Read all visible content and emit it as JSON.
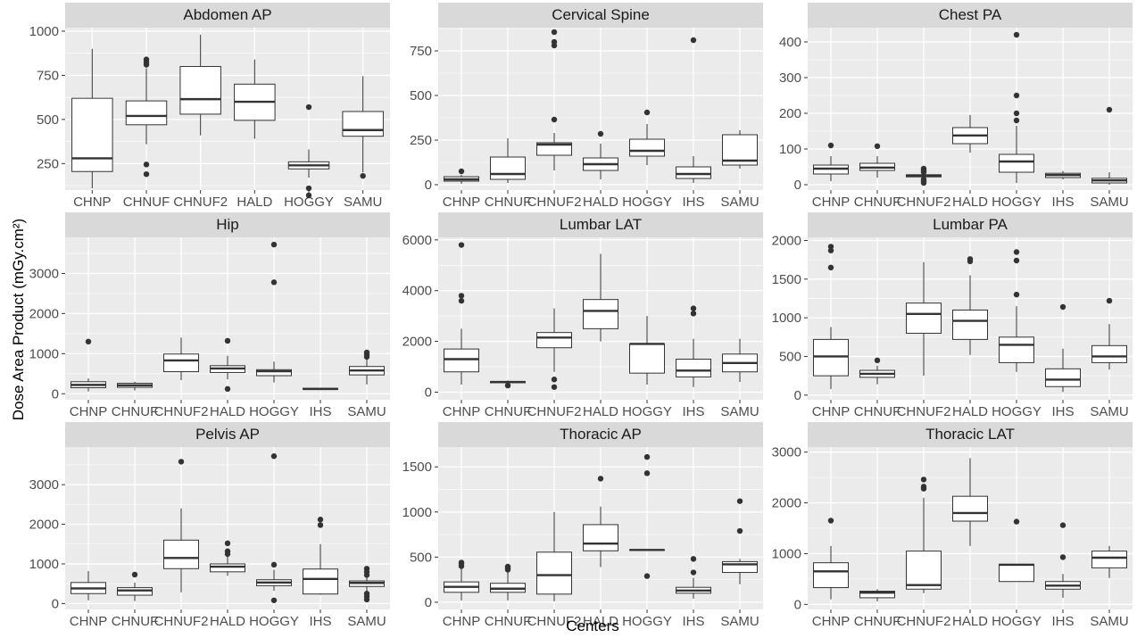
{
  "figure": {
    "xlabel": "Centers",
    "ylabel": "Dose Area Product (mGy.cm²)"
  },
  "colors": {
    "panel_bg": "#ebebeb",
    "strip_bg": "#d9d9d9",
    "grid_major": "#ffffff",
    "box_fill": "#ffffff",
    "box_line": "#333333",
    "outlier": "#333333"
  },
  "chart_data": [
    {
      "type": "box",
      "title": "Abdomen AP",
      "categories": [
        "CHNP",
        "CHNUF",
        "CHNUF2",
        "HALD",
        "HOGGY",
        "SAMU"
      ],
      "ylim": [
        100,
        1020
      ],
      "yticks": [
        250,
        500,
        750,
        1000
      ],
      "boxes": [
        {
          "min": 110,
          "q1": 205,
          "median": 280,
          "q3": 620,
          "max": 900,
          "outliers": []
        },
        {
          "min": 360,
          "q1": 470,
          "median": 520,
          "q3": 605,
          "max": 790,
          "outliers": [
            190,
            245,
            810,
            825,
            840
          ]
        },
        {
          "min": 410,
          "q1": 530,
          "median": 615,
          "q3": 800,
          "max": 980,
          "outliers": []
        },
        {
          "min": 390,
          "q1": 495,
          "median": 600,
          "q3": 700,
          "max": 840,
          "outliers": []
        },
        {
          "min": 170,
          "q1": 220,
          "median": 240,
          "q3": 260,
          "max": 330,
          "outliers": [
            70,
            110,
            570
          ]
        },
        {
          "min": 200,
          "q1": 405,
          "median": 440,
          "q3": 545,
          "max": 745,
          "outliers": [
            180
          ]
        }
      ]
    },
    {
      "type": "box",
      "title": "Cervical Spine",
      "categories": [
        "CHNP",
        "CHNUF",
        "CHNUF2",
        "HALD",
        "HOGGY",
        "IHS",
        "SAMU"
      ],
      "ylim": [
        -30,
        880
      ],
      "yticks": [
        0,
        250,
        500,
        750
      ],
      "boxes": [
        {
          "min": 5,
          "q1": 20,
          "median": 30,
          "q3": 45,
          "max": 55,
          "outliers": [
            75
          ]
        },
        {
          "min": 10,
          "q1": 30,
          "median": 60,
          "q3": 155,
          "max": 260,
          "outliers": []
        },
        {
          "min": 80,
          "q1": 165,
          "median": 225,
          "q3": 235,
          "max": 290,
          "outliers": [
            365,
            780,
            800,
            855
          ]
        },
        {
          "min": 30,
          "q1": 80,
          "median": 115,
          "q3": 150,
          "max": 230,
          "outliers": [
            285
          ]
        },
        {
          "min": 110,
          "q1": 160,
          "median": 190,
          "q3": 255,
          "max": 340,
          "outliers": [
            405
          ]
        },
        {
          "min": 10,
          "q1": 35,
          "median": 60,
          "q3": 100,
          "max": 160,
          "outliers": [
            810
          ]
        },
        {
          "min": 90,
          "q1": 110,
          "median": 135,
          "q3": 280,
          "max": 305,
          "outliers": []
        }
      ]
    },
    {
      "type": "box",
      "title": "Chest PA",
      "categories": [
        "CHNP",
        "CHNUF",
        "CHNUF2",
        "HALD",
        "HOGGY",
        "IHS",
        "SAMU"
      ],
      "ylim": [
        -15,
        440
      ],
      "yticks": [
        0,
        100,
        200,
        300,
        400
      ],
      "boxes": [
        {
          "min": 10,
          "q1": 30,
          "median": 45,
          "q3": 55,
          "max": 80,
          "outliers": [
            110
          ]
        },
        {
          "min": 20,
          "q1": 40,
          "median": 48,
          "q3": 60,
          "max": 80,
          "outliers": [
            108
          ]
        },
        {
          "min": 18,
          "q1": 22,
          "median": 25,
          "q3": 28,
          "max": 32,
          "outliers": [
            5,
            10,
            15,
            35,
            40,
            45
          ]
        },
        {
          "min": 90,
          "q1": 115,
          "median": 138,
          "q3": 160,
          "max": 195,
          "outliers": []
        },
        {
          "min": 5,
          "q1": 35,
          "median": 65,
          "q3": 85,
          "max": 165,
          "outliers": [
            180,
            200,
            250,
            420
          ]
        },
        {
          "min": 15,
          "q1": 20,
          "median": 27,
          "q3": 32,
          "max": 38,
          "outliers": []
        },
        {
          "min": 0,
          "q1": 5,
          "median": 12,
          "q3": 18,
          "max": 35,
          "outliers": [
            210
          ]
        }
      ]
    },
    {
      "type": "box",
      "title": "Hip",
      "categories": [
        "CHNP",
        "CHNUF",
        "CHNUF2",
        "HALD",
        "HOGGY",
        "IHS",
        "SAMU"
      ],
      "ylim": [
        -150,
        3900
      ],
      "yticks": [
        0,
        1000,
        2000,
        3000
      ],
      "boxes": [
        {
          "min": 60,
          "q1": 150,
          "median": 220,
          "q3": 300,
          "max": 380,
          "outliers": [
            1300
          ]
        },
        {
          "min": 80,
          "q1": 160,
          "median": 210,
          "q3": 260,
          "max": 300,
          "outliers": []
        },
        {
          "min": 340,
          "q1": 550,
          "median": 830,
          "q3": 990,
          "max": 1400,
          "outliers": []
        },
        {
          "min": 360,
          "q1": 530,
          "median": 630,
          "q3": 700,
          "max": 950,
          "outliers": [
            120,
            1320
          ]
        },
        {
          "min": 280,
          "q1": 450,
          "median": 560,
          "q3": 600,
          "max": 800,
          "outliers": [
            2780,
            3720
          ]
        },
        {
          "min": 90,
          "q1": 110,
          "median": 120,
          "q3": 135,
          "max": 150,
          "outliers": []
        },
        {
          "min": 230,
          "q1": 470,
          "median": 580,
          "q3": 680,
          "max": 880,
          "outliers": [
            920,
            980,
            1030
          ]
        }
      ]
    },
    {
      "type": "box",
      "title": "Lumbar LAT",
      "categories": [
        "CHNP",
        "CHNUF",
        "CHNUF2",
        "HALD",
        "HOGGY",
        "IHS",
        "SAMU"
      ],
      "ylim": [
        -300,
        6100
      ],
      "yticks": [
        0,
        2000,
        4000,
        6000
      ],
      "boxes": [
        {
          "min": 300,
          "q1": 800,
          "median": 1300,
          "q3": 1700,
          "max": 2500,
          "outliers": [
            3600,
            3800,
            5800
          ]
        },
        {
          "min": 320,
          "q1": 370,
          "median": 400,
          "q3": 420,
          "max": 460,
          "outliers": [
            260
          ]
        },
        {
          "min": 800,
          "q1": 1750,
          "median": 2150,
          "q3": 2350,
          "max": 3300,
          "outliers": [
            200,
            500
          ]
        },
        {
          "min": 2000,
          "q1": 2500,
          "median": 3200,
          "q3": 3650,
          "max": 5450,
          "outliers": []
        },
        {
          "min": 300,
          "q1": 750,
          "median": 1900,
          "q3": 1900,
          "max": 3000,
          "outliers": []
        },
        {
          "min": 200,
          "q1": 600,
          "median": 850,
          "q3": 1300,
          "max": 2100,
          "outliers": [
            3100,
            3300
          ]
        },
        {
          "min": 400,
          "q1": 800,
          "median": 1150,
          "q3": 1500,
          "max": 2100,
          "outliers": []
        }
      ]
    },
    {
      "type": "box",
      "title": "Lumbar PA",
      "categories": [
        "CHNP",
        "CHNUF",
        "CHNUF2",
        "HALD",
        "HOGGY",
        "IHS",
        "SAMU"
      ],
      "ylim": [
        -60,
        2040
      ],
      "yticks": [
        0,
        500,
        1000,
        1500,
        2000
      ],
      "boxes": [
        {
          "min": 80,
          "q1": 250,
          "median": 500,
          "q3": 720,
          "max": 880,
          "outliers": [
            1650,
            1870,
            1920
          ]
        },
        {
          "min": 140,
          "q1": 230,
          "median": 275,
          "q3": 320,
          "max": 380,
          "outliers": [
            450
          ]
        },
        {
          "min": 250,
          "q1": 800,
          "median": 1050,
          "q3": 1190,
          "max": 1720,
          "outliers": []
        },
        {
          "min": 520,
          "q1": 720,
          "median": 960,
          "q3": 1100,
          "max": 1550,
          "outliers": [
            1730,
            1760
          ]
        },
        {
          "min": 300,
          "q1": 420,
          "median": 650,
          "q3": 750,
          "max": 1150,
          "outliers": [
            1300,
            1740,
            1850
          ]
        },
        {
          "min": 40,
          "q1": 110,
          "median": 200,
          "q3": 340,
          "max": 600,
          "outliers": [
            1140
          ]
        },
        {
          "min": 330,
          "q1": 420,
          "median": 500,
          "q3": 640,
          "max": 920,
          "outliers": [
            1220
          ]
        }
      ]
    },
    {
      "type": "box",
      "title": "Pelvis AP",
      "categories": [
        "CHNP",
        "CHNUF",
        "CHNUF2",
        "HALD",
        "HOGGY",
        "IHS",
        "SAMU"
      ],
      "ylim": [
        -150,
        3950
      ],
      "yticks": [
        0,
        1000,
        2000,
        3000
      ],
      "boxes": [
        {
          "min": 80,
          "q1": 250,
          "median": 380,
          "q3": 530,
          "max": 820,
          "outliers": []
        },
        {
          "min": 60,
          "q1": 210,
          "median": 330,
          "q3": 400,
          "max": 530,
          "outliers": [
            730
          ]
        },
        {
          "min": 280,
          "q1": 880,
          "median": 1150,
          "q3": 1600,
          "max": 2400,
          "outliers": [
            3580
          ]
        },
        {
          "min": 700,
          "q1": 800,
          "median": 930,
          "q3": 1000,
          "max": 1180,
          "outliers": [
            1250,
            1320,
            1520
          ]
        },
        {
          "min": 320,
          "q1": 450,
          "median": 530,
          "q3": 600,
          "max": 850,
          "outliers": [
            80,
            980,
            3720
          ]
        },
        {
          "min": 220,
          "q1": 240,
          "median": 620,
          "q3": 870,
          "max": 1500,
          "outliers": [
            1980,
            2120
          ]
        },
        {
          "min": 280,
          "q1": 430,
          "median": 520,
          "q3": 570,
          "max": 680,
          "outliers": [
            100,
            180,
            250,
            720,
            800,
            880
          ]
        }
      ]
    },
    {
      "type": "box",
      "title": "Thoracic AP",
      "categories": [
        "CHNP",
        "CHNUF",
        "CHNUF2",
        "HALD",
        "HOGGY",
        "IHS",
        "SAMU"
      ],
      "ylim": [
        -80,
        1720
      ],
      "yticks": [
        0,
        500,
        1000,
        1500
      ],
      "boxes": [
        {
          "min": 20,
          "q1": 110,
          "median": 170,
          "q3": 225,
          "max": 370,
          "outliers": [
            400,
            430,
            440
          ]
        },
        {
          "min": 20,
          "q1": 110,
          "median": 150,
          "q3": 210,
          "max": 330,
          "outliers": [
            360,
            380,
            395
          ]
        },
        {
          "min": 10,
          "q1": 90,
          "median": 300,
          "q3": 555,
          "max": 1000,
          "outliers": []
        },
        {
          "min": 390,
          "q1": 570,
          "median": 650,
          "q3": 860,
          "max": 1060,
          "outliers": [
            1370
          ]
        },
        {
          "min": 580,
          "q1": 580,
          "median": 580,
          "q3": 580,
          "max": 580,
          "outliers": [
            290,
            1430,
            1610
          ]
        },
        {
          "min": 40,
          "q1": 100,
          "median": 130,
          "q3": 165,
          "max": 270,
          "outliers": [
            330,
            480
          ]
        },
        {
          "min": 200,
          "q1": 330,
          "median": 420,
          "q3": 450,
          "max": 480,
          "outliers": [
            790,
            1120
          ]
        }
      ]
    },
    {
      "type": "box",
      "title": "Thoracic LAT",
      "categories": [
        "CHNP",
        "CHNUF",
        "CHNUF2",
        "HALD",
        "HOGGY",
        "IHS",
        "SAMU"
      ],
      "ylim": [
        -100,
        3100
      ],
      "yticks": [
        0,
        1000,
        2000,
        3000
      ],
      "boxes": [
        {
          "min": 100,
          "q1": 330,
          "median": 650,
          "q3": 820,
          "max": 1150,
          "outliers": [
            1650
          ]
        },
        {
          "min": 60,
          "q1": 130,
          "median": 230,
          "q3": 260,
          "max": 300,
          "outliers": []
        },
        {
          "min": 220,
          "q1": 300,
          "median": 380,
          "q3": 1050,
          "max": 2100,
          "outliers": [
            2280,
            2320,
            2460
          ]
        },
        {
          "min": 1150,
          "q1": 1640,
          "median": 1800,
          "q3": 2130,
          "max": 2880,
          "outliers": []
        },
        {
          "min": 450,
          "q1": 450,
          "median": 780,
          "q3": 790,
          "max": 800,
          "outliers": [
            1630
          ]
        },
        {
          "min": 130,
          "q1": 300,
          "median": 370,
          "q3": 450,
          "max": 600,
          "outliers": [
            930,
            1560
          ]
        },
        {
          "min": 520,
          "q1": 720,
          "median": 920,
          "q3": 1050,
          "max": 1150,
          "outliers": []
        }
      ]
    }
  ]
}
